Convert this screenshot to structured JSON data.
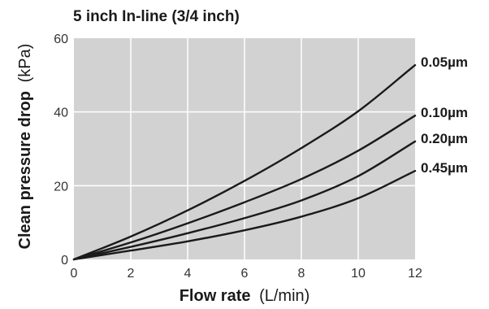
{
  "chart_data": {
    "type": "line",
    "title": "5 inch In-line (3/4 inch)",
    "xlabel": {
      "main": "Flow rate",
      "unit": "(L/min)"
    },
    "ylabel": {
      "main": "Clean pressure drop",
      "unit": "(kPa)"
    },
    "xlim": [
      0,
      12
    ],
    "ylim": [
      0,
      60
    ],
    "x_ticks": [
      0,
      2,
      4,
      6,
      8,
      10,
      12
    ],
    "y_ticks": [
      0,
      20,
      40,
      60
    ],
    "grid": true,
    "colors": {
      "plot_background": "#d2d2d2",
      "grid": "#ffffff",
      "line": "#1a1a1a"
    },
    "x": [
      0,
      2,
      4,
      6,
      8,
      10,
      12
    ],
    "series": [
      {
        "name": "0.05µm",
        "values": [
          0,
          6.2,
          13.3,
          21.3,
          30.2,
          40.2,
          52.7
        ]
      },
      {
        "name": "0.10µm",
        "values": [
          0,
          4.6,
          9.8,
          15.5,
          21.8,
          29.5,
          39.0
        ]
      },
      {
        "name": "0.20µm",
        "values": [
          0,
          3.4,
          7.1,
          11.2,
          16.0,
          22.6,
          32.0
        ]
      },
      {
        "name": "0.45µm",
        "values": [
          0,
          2.4,
          4.9,
          7.9,
          11.6,
          16.6,
          24.0
        ]
      }
    ]
  }
}
